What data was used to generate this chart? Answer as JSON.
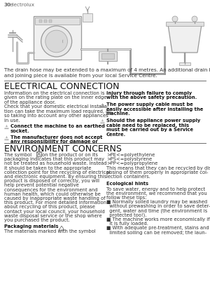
{
  "page_num": "30",
  "brand": "electrolux",
  "bg_color": "#ffffff",
  "section1_title": "ELECTRICAL CONNECTION",
  "section2_title": "ENVIRONMENT CONCERNS",
  "drain_hose_line1": "The drain hose may be extended to a maximum of 4 metres. An additional drain hose",
  "drain_hose_line2": "and joining piece is available from your local Service Centre.",
  "elec_left_col": [
    "Information on the electrical connection is",
    "given on the rating plate on the inner edge",
    "of the appliance door.",
    "Check that your domestic electrical installa-",
    "tion can take the maximum load required, al-",
    "so taking into account any other appliances",
    "in use."
  ],
  "elec_b1_line1": "Connect the machine to an earthed",
  "elec_b1_line2": "socket.",
  "elec_b2_line1": "The manufacturer does not accept",
  "elec_b2_line2": "any responsibility for damage or",
  "elec_r_intro1": "injury through failure to comply",
  "elec_r_intro2": "with the above safety precaution.",
  "elec_b3_line1": "The power supply cable must be",
  "elec_b3_line2": "easily accessible after installing the",
  "elec_b3_line3": "machine.",
  "elec_b4_line1": "Should the appliance power supply",
  "elec_b4_line2": "cable need to be replaced, this",
  "elec_b4_line3": "must be carried out by a Service",
  "elec_b4_line4": "Centre.",
  "env_left_col": [
    "The symbol       on the product or on its",
    "packaging indicates that this product may",
    "not be treated as household waste. Instead",
    "it should be taken to the appropriate",
    "collection point for the recycling of electrical",
    "and electronic equipment. By ensuring this",
    "product is disposed of correctly, you will",
    "help prevent potential negative",
    "consequences for the environment and",
    "human health, which could otherwise be",
    "caused by inappropriate waste handling of",
    "this product. For more detailed information",
    "about recycling of this product, please",
    "contact your local council, your household",
    "waste disposal service or the shop where",
    "you purchased the product."
  ],
  "packaging_title": "Packaging materials",
  "packaging_text": "The materials marked with the symbol",
  "env_right_col": [
    ">PE<=polyethylene",
    ">PS<=polystyrene",
    ">PP<=polypropylene",
    "This means that they can be recycled by dis-",
    "posing of them properly in appropriate col-",
    "lection containers."
  ],
  "ecological_title": "Ecological hints",
  "ecological_text": [
    "To save water, energy and to help protect",
    "the environment, we recommend that you",
    "follow these tips:",
    "■ Normally soiled laundry may be washed",
    "  without prewashing in order to save deter-",
    "  gent, water and time (the environment is",
    "  protected too!).",
    "■ The machine works more economically if",
    "  it is fully loaded.",
    "■ With adequate pre-treatment, stains and",
    "  limited soiling can be removed; the laun-"
  ]
}
